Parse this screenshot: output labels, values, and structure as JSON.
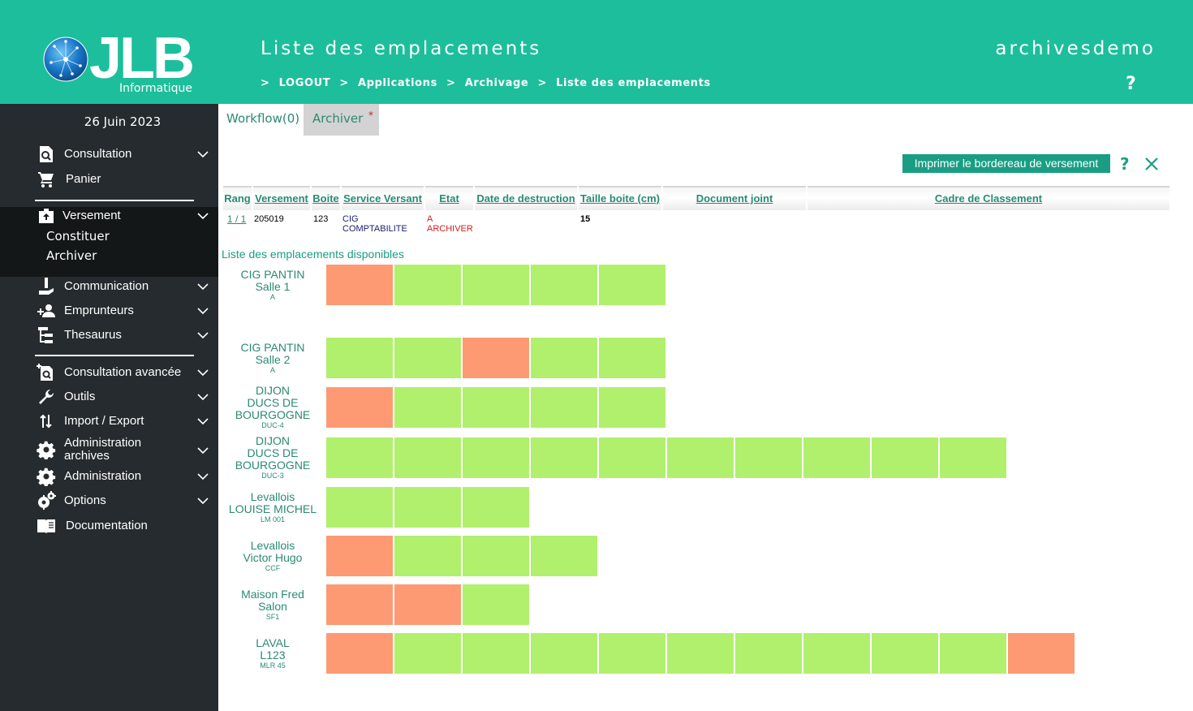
{
  "header": {
    "logo_text": "JLB",
    "logo_sub": "Informatique",
    "title": "Liste des emplacements",
    "site": "archivesdemo",
    "help": "?",
    "breadcrumb": {
      "sep": ">",
      "logout": "LOGOUT",
      "applications": "Applications",
      "archivage": "Archivage",
      "current": "Liste des emplacements"
    }
  },
  "sidebar": {
    "date": "26 Juin 2023",
    "items": [
      {
        "label": "Consultation",
        "icon": "search-doc-icon"
      },
      {
        "label": "Panier",
        "icon": "cart-icon"
      },
      {
        "label": "Versement",
        "icon": "box-upload-icon"
      },
      {
        "label": "Communication",
        "icon": "hand-icon"
      },
      {
        "label": "Emprunteurs",
        "icon": "add-person-icon"
      },
      {
        "label": "Thesaurus",
        "icon": "tree-icon"
      },
      {
        "label": "Consultation avancée",
        "icon": "advanced-search-icon"
      },
      {
        "label": "Outils",
        "icon": "wrench-icon"
      },
      {
        "label": "Import / Export",
        "icon": "import-export-icon"
      },
      {
        "label": "Administration archives",
        "icon": "gear-icon"
      },
      {
        "label": "Administration",
        "icon": "gear-icon"
      },
      {
        "label": "Options",
        "icon": "gears-icon"
      },
      {
        "label": "Documentation",
        "icon": "book-icon"
      }
    ],
    "admin_archives_line1": "Administration",
    "admin_archives_line2": "archives",
    "sub_items": [
      "Constituer",
      "Archiver"
    ]
  },
  "tabs": [
    {
      "label": "Workflow(0)"
    },
    {
      "label": "Archiver",
      "marker": "*"
    }
  ],
  "actions": {
    "print_label": "Imprimer le bordereau de versement",
    "help": "?"
  },
  "table": {
    "columns": [
      "Rang",
      "Versement",
      "Boite",
      "Service Versant",
      "Etat",
      "Date de destruction",
      "Taille boite (cm)",
      "Document joint",
      "Cadre de Classement"
    ],
    "row": {
      "rang": "1 / 1",
      "versement": "205019",
      "boite": "123",
      "service_line1": "CIG",
      "service_line2": "COMPTABILITE",
      "etat_line1": "A",
      "etat_line2": "ARCHIVER",
      "date_destruction": "",
      "taille": "15",
      "document": "",
      "cadre": ""
    }
  },
  "locations_title": "Liste des emplacements disponibles",
  "colors": {
    "header_bg": "#1dbe9b",
    "sidebar_bg": "#252b2e",
    "accent": "#1a9e83",
    "free": "#b1f06c",
    "full": "#fd9a73",
    "state_red": "#d02020"
  },
  "locations": [
    {
      "line1": "CIG PANTIN",
      "line2": "Salle 1",
      "code": "A",
      "cells": [
        "full",
        "free",
        "free",
        "free",
        "free"
      ]
    },
    {
      "line1": "CIG PANTIN",
      "line2": "Salle 2",
      "code": "A",
      "cells": [
        "free",
        "free",
        "full",
        "free",
        "free"
      ]
    },
    {
      "line1": "DIJON",
      "line2": "DUCS DE",
      "line3": "BOURGOGNE",
      "code": "DUC-4",
      "cells": [
        "full",
        "free",
        "free",
        "free",
        "free"
      ]
    },
    {
      "line1": "DIJON",
      "line2": "DUCS DE",
      "line3": "BOURGOGNE",
      "code": "DUC-3",
      "cells": [
        "free",
        "free",
        "free",
        "free",
        "free",
        "free",
        "free",
        "free",
        "free",
        "free"
      ]
    },
    {
      "line1": "Levallois",
      "line2": "LOUISE MICHEL",
      "code": "LM 001",
      "cells": [
        "free",
        "free",
        "free"
      ]
    },
    {
      "line1": "Levallois",
      "line2": "Victor Hugo",
      "code": "CCF",
      "cells": [
        "full",
        "free",
        "free",
        "free"
      ]
    },
    {
      "line1": "Maison Fred",
      "line2": "Salon",
      "code": "SF1",
      "cells": [
        "full",
        "full",
        "free"
      ]
    },
    {
      "line1": "LAVAL",
      "line2": "L123",
      "code": "MLR 45",
      "cells": [
        "full",
        "free",
        "free",
        "free",
        "free",
        "free",
        "free",
        "free",
        "free",
        "free",
        "full"
      ]
    }
  ]
}
